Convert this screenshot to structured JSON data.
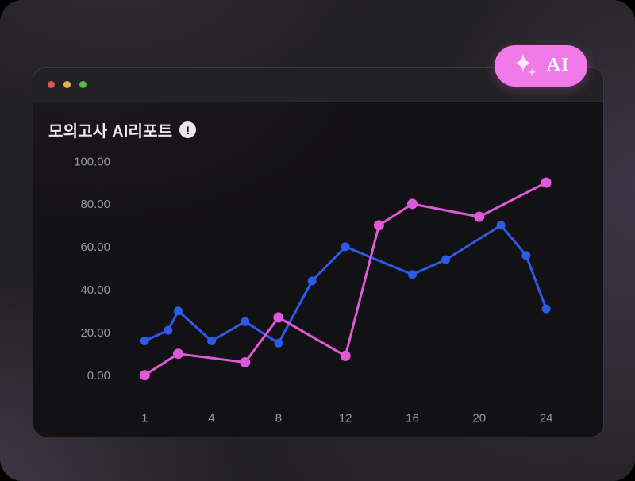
{
  "window": {
    "title": "모의고사 AI리포트",
    "info_icon_glyph": "!",
    "traffic_lights": [
      "#e0544e",
      "#eab24b",
      "#58ba4a"
    ]
  },
  "badge": {
    "label": "AI",
    "color": "#f07ae8",
    "icon": "sparkle-icon"
  },
  "chart_data": {
    "type": "line",
    "title": "모의고사 AI리포트",
    "grid": false,
    "legend": "none",
    "ylim": [
      0,
      100
    ],
    "y_tick_labels": [
      "100.00",
      "80.00",
      "60.00",
      "40.00",
      "20.00",
      "0.00"
    ],
    "y_tick_values": [
      100,
      80,
      60,
      40,
      20,
      0
    ],
    "x_tick_labels": [
      "1",
      "4",
      "8",
      "12",
      "16",
      "20",
      "24"
    ],
    "x_tick_values": [
      1,
      4,
      8,
      12,
      16,
      20,
      24
    ],
    "x_scale_note": "category-like axis: step 1→2 equals one slot, values ≥2 advance one slot per 2 units",
    "axis_label_color": "#98979b",
    "series": [
      {
        "name": "blue-series",
        "color": "#2d5ae8",
        "line_width": 3,
        "point_radius": 5.5,
        "points": [
          {
            "x": 1,
            "y": 16
          },
          {
            "x": 1.7,
            "y": 21
          },
          {
            "x": 2,
            "y": 30
          },
          {
            "x": 4,
            "y": 16
          },
          {
            "x": 6,
            "y": 25
          },
          {
            "x": 8,
            "y": 15
          },
          {
            "x": 10,
            "y": 44
          },
          {
            "x": 12,
            "y": 60
          },
          {
            "x": 16,
            "y": 47
          },
          {
            "x": 18,
            "y": 54
          },
          {
            "x": 21.3,
            "y": 70
          },
          {
            "x": 22.8,
            "y": 56
          },
          {
            "x": 24,
            "y": 31
          }
        ]
      },
      {
        "name": "pink-series",
        "color": "#de58d8",
        "line_width": 3,
        "point_radius": 6.5,
        "points": [
          {
            "x": 1,
            "y": 0
          },
          {
            "x": 2,
            "y": 10
          },
          {
            "x": 6,
            "y": 6
          },
          {
            "x": 8,
            "y": 27
          },
          {
            "x": 12,
            "y": 9
          },
          {
            "x": 14,
            "y": 70
          },
          {
            "x": 16,
            "y": 80
          },
          {
            "x": 20,
            "y": 74
          },
          {
            "x": 24,
            "y": 90
          }
        ]
      }
    ]
  }
}
